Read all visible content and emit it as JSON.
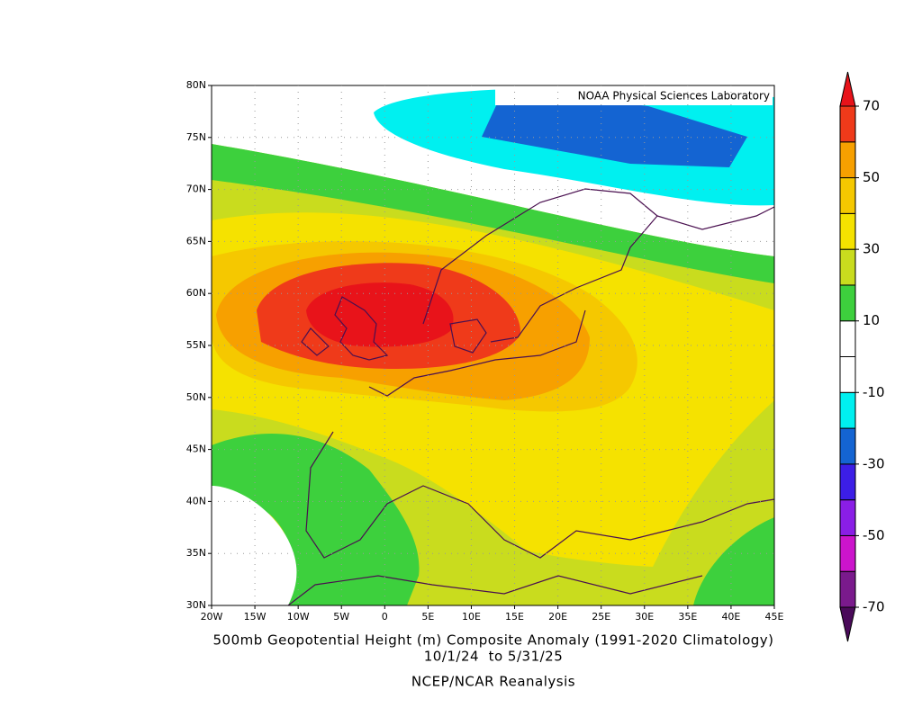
{
  "chart_data": {
    "type": "contour-map",
    "title": "500mb Geopotential Height (m) Composite Anomaly (1991-2020 Climatology)",
    "subtitle": "10/1/24  to 5/31/25",
    "source": "NCEP/NCAR Reanalysis",
    "credit": "NOAA Physical Sciences Laboratory",
    "xlim": [
      -20,
      45
    ],
    "xticks": [
      {
        "value": -20,
        "label": "20W"
      },
      {
        "value": -15,
        "label": "15W"
      },
      {
        "value": -10,
        "label": "10W"
      },
      {
        "value": -5,
        "label": "5W"
      },
      0,
      {
        "value": 5,
        "label": "5E"
      },
      {
        "value": 10,
        "label": "10E"
      },
      {
        "value": 15,
        "label": "15E"
      },
      {
        "value": 20,
        "label": "20E"
      },
      {
        "value": 25,
        "label": "25E"
      },
      {
        "value": 30,
        "label": "30E"
      },
      {
        "value": 35,
        "label": "35E"
      },
      {
        "value": 40,
        "label": "40E"
      },
      {
        "value": 45,
        "label": "45E"
      }
    ],
    "ylim": [
      30,
      80
    ],
    "yticks": [
      {
        "value": 30,
        "label": "30N"
      },
      {
        "value": 35,
        "label": "35N"
      },
      {
        "value": 40,
        "label": "40N"
      },
      {
        "value": 45,
        "label": "45N"
      },
      {
        "value": 50,
        "label": "50N"
      },
      {
        "value": 55,
        "label": "55N"
      },
      {
        "value": 60,
        "label": "60N"
      },
      {
        "value": 65,
        "label": "65N"
      },
      {
        "value": 70,
        "label": "70N"
      },
      {
        "value": 75,
        "label": "75N"
      },
      {
        "value": 80,
        "label": "80N"
      }
    ],
    "grid": true,
    "colorbar": {
      "levels": [
        -70,
        -60,
        -50,
        -40,
        -30,
        -20,
        -10,
        0,
        10,
        20,
        30,
        40,
        50,
        60,
        70
      ],
      "ticks": [
        -70,
        -50,
        -30,
        -10,
        10,
        30,
        50,
        70
      ],
      "colors": [
        "#4a0a5a",
        "#7a1a8c",
        "#cc14cc",
        "#8a1ee6",
        "#3c1ee6",
        "#1464d2",
        "#00f0f0",
        "#ffffff",
        "#ffffff",
        "#3dd03d",
        "#c9dc1e",
        "#f5e200",
        "#f5c800",
        "#f7a000",
        "#ef3a1a",
        "#e8131a"
      ]
    }
  }
}
